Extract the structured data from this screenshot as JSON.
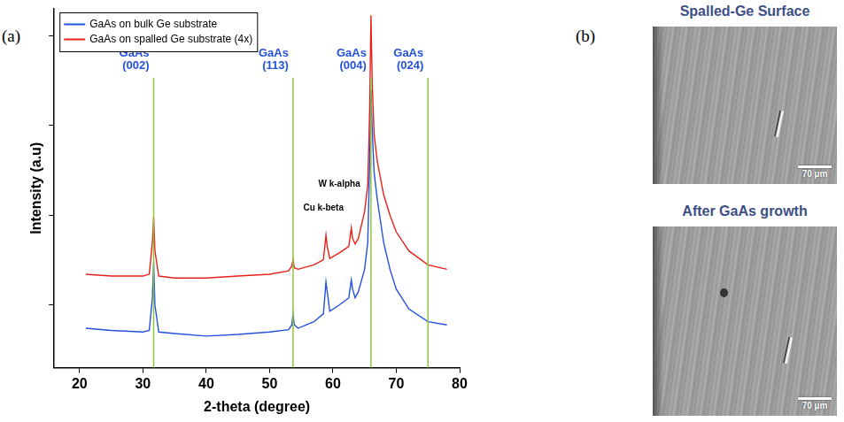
{
  "chart_data": {
    "type": "line",
    "panel_label": "(a)",
    "x_label": "2-theta (degree)",
    "y_label": "Intensity (a.u)",
    "x": [
      21,
      25,
      30,
      31,
      31.5,
      31.7,
      31.9,
      32.5,
      35,
      40,
      45,
      50,
      53,
      53.5,
      53.7,
      53.9,
      54.5,
      57,
      58.5,
      58.9,
      59.1,
      59.5,
      61,
      62.5,
      62.9,
      63.1,
      63.5,
      64,
      65,
      65.5,
      65.8,
      66,
      66.2,
      66.5,
      67,
      68,
      69,
      70,
      72,
      75,
      78
    ],
    "series": [
      {
        "name": "GaAs on bulk Ge substrate",
        "color": "#2450e0",
        "values": [
          5.5,
          5.2,
          5,
          5.2,
          12,
          30,
          10,
          5,
          4.8,
          4.5,
          4.7,
          5,
          5.3,
          6,
          8,
          6,
          5.5,
          6.5,
          8,
          18,
          14,
          8.5,
          10,
          12,
          19,
          15,
          12,
          14,
          25,
          50,
          400,
          2500,
          900,
          300,
          150,
          50,
          25,
          15,
          9,
          6.5,
          6
        ]
      },
      {
        "name": "GaAs on spalled Ge substrate (4x)",
        "color": "#e8201a",
        "values": [
          22,
          21,
          21,
          22,
          50,
          95,
          40,
          21,
          20,
          20,
          21,
          22,
          24,
          27,
          32,
          26,
          25,
          28,
          32,
          60,
          45,
          33,
          38,
          45,
          72,
          55,
          48,
          55,
          110,
          220,
          1500,
          17000,
          3000,
          800,
          400,
          170,
          100,
          65,
          40,
          28,
          25
        ]
      }
    ],
    "xlim": [
      16,
      80
    ],
    "xticks": [
      20,
      30,
      40,
      50,
      60,
      70,
      80
    ],
    "ylim": [
      2,
      20000
    ],
    "yticks": [
      10,
      100,
      1000,
      10000
    ],
    "log": "y",
    "grid": false,
    "tick_labels": "x",
    "legend": "upper left",
    "peak_lines": {
      "color": "#8cc63f",
      "label_color": "#2450e0",
      "items": [
        {
          "x": 31.7,
          "label": [
            "GaAs",
            "(002)"
          ]
        },
        {
          "x": 53.7,
          "label": [
            "GaAs",
            "(113)"
          ]
        },
        {
          "x": 66.0,
          "label": [
            "GaAs",
            "(004)"
          ]
        },
        {
          "x": 75.0,
          "label": [
            "GaAs",
            "(024)"
          ]
        }
      ]
    },
    "annotations": [
      {
        "text": "Cu k-beta",
        "x": 58.5,
        "y": 120
      },
      {
        "text": "W k-alpha",
        "x": 61,
        "y": 220
      }
    ]
  },
  "image_panel": {
    "panel_label": "(b)",
    "images": [
      {
        "title": "Spalled-Ge Surface",
        "scale_bar": "70 µm"
      },
      {
        "title": "After GaAs growth",
        "scale_bar": "70 µm"
      }
    ]
  }
}
